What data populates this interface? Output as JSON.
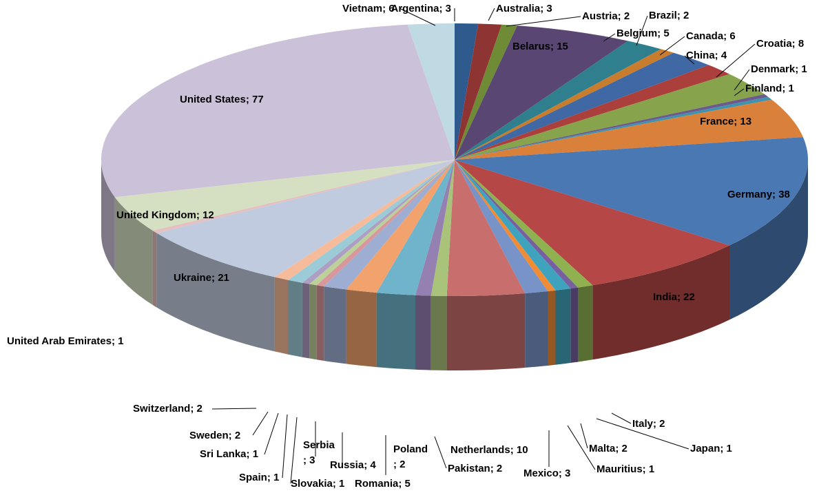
{
  "chart_data": {
    "type": "pie",
    "style": "3d",
    "labels_format": "category; value",
    "slices": [
      {
        "name": "Argentina",
        "value": 3,
        "color": "#2f5a8e"
      },
      {
        "name": "Australia",
        "value": 3,
        "color": "#8e3433"
      },
      {
        "name": "Austria",
        "value": 2,
        "color": "#6f8b36"
      },
      {
        "name": "Belarus",
        "value": 15,
        "color": "#5a4673"
      },
      {
        "name": "Belgium",
        "value": 5,
        "color": "#2f7f8e"
      },
      {
        "name": "Brazil",
        "value": 2,
        "color": "#c77c2e"
      },
      {
        "name": "Canada",
        "value": 6,
        "color": "#3f68a5"
      },
      {
        "name": "China",
        "value": 4,
        "color": "#ab3f3c"
      },
      {
        "name": "Croatia",
        "value": 8,
        "color": "#87a34b"
      },
      {
        "name": "Denmark",
        "value": 1,
        "color": "#6c5a8c"
      },
      {
        "name": "Finland",
        "value": 1,
        "color": "#3f93ad"
      },
      {
        "name": "France",
        "value": 13,
        "color": "#d9813a"
      },
      {
        "name": "Germany",
        "value": 38,
        "color": "#4a78b3"
      },
      {
        "name": "India",
        "value": 22,
        "color": "#b64747"
      },
      {
        "name": "Italy",
        "value": 2,
        "color": "#8fb150"
      },
      {
        "name": "Japan",
        "value": 1,
        "color": "#7660a0"
      },
      {
        "name": "Malta",
        "value": 2,
        "color": "#40a3bd"
      },
      {
        "name": "Mauritius",
        "value": 1,
        "color": "#ef8c35"
      },
      {
        "name": "Mexico",
        "value": 3,
        "color": "#7793c8"
      },
      {
        "name": "Netherlands",
        "value": 10,
        "color": "#c86f6e"
      },
      {
        "name": "Pakistan",
        "value": 2,
        "color": "#a9c37a"
      },
      {
        "name": "Poland",
        "value": 2,
        "color": "#9480b1"
      },
      {
        "name": "Romania",
        "value": 5,
        "color": "#6fb4cb"
      },
      {
        "name": "Russia",
        "value": 4,
        "color": "#f2a36d"
      },
      {
        "name": "Serbia",
        "value": 3,
        "color": "#9eaed3"
      },
      {
        "name": "Slovakia",
        "value": 1,
        "color": "#d8979a"
      },
      {
        "name": "Spain",
        "value": 1,
        "color": "#bcd09a"
      },
      {
        "name": "Sri Lanka",
        "value": 1,
        "color": "#ad9ec4"
      },
      {
        "name": "Sweden",
        "value": 2,
        "color": "#9ccbd8"
      },
      {
        "name": "Switzerland",
        "value": 2,
        "color": "#f6bb9a"
      },
      {
        "name": "Ukraine",
        "value": 21,
        "color": "#c0cbdf"
      },
      {
        "name": "United Arab Emirates",
        "value": 1,
        "color": "#e4c0c0"
      },
      {
        "name": "United Kingdom",
        "value": 12,
        "color": "#d5e0c3"
      },
      {
        "name": "United States",
        "value": 77,
        "color": "#cbc1d8"
      },
      {
        "name": "Vietnam",
        "value": 6,
        "color": "#c0dae4"
      }
    ],
    "label_text": [
      "Argentina; 3",
      "Australia; 3",
      "Austria; 2",
      "Belarus; 15",
      "Belgium; 5",
      "Brazil; 2",
      "Canada; 6",
      "China; 4",
      "Croatia; 8",
      "Denmark; 1",
      "Finland; 1",
      "France; 13",
      "Germany; 38",
      "India; 22",
      "Italy; 2",
      "Japan; 1",
      "Malta; 2",
      "Mauritius; 1",
      "Mexico; 3",
      "Netherlands; 10",
      "Pakistan; 2",
      "Poland; 2",
      "Romania; 5",
      "Russia; 4",
      "Serbia; 3",
      "Slovakia; 1",
      "Spain; 1",
      "Sri Lanka; 1",
      "Sweden; 2",
      "Switzerland; 2",
      "Ukraine; 21",
      "United Arab Emirates; 1",
      "United Kingdom; 12",
      "United States; 77",
      "Vietnam; 6"
    ],
    "label_overrides": {
      "Poland": [
        "Poland",
        "; 2"
      ],
      "Serbia": [
        "Serbia",
        "; 3"
      ]
    },
    "legend": "none",
    "title": ""
  }
}
